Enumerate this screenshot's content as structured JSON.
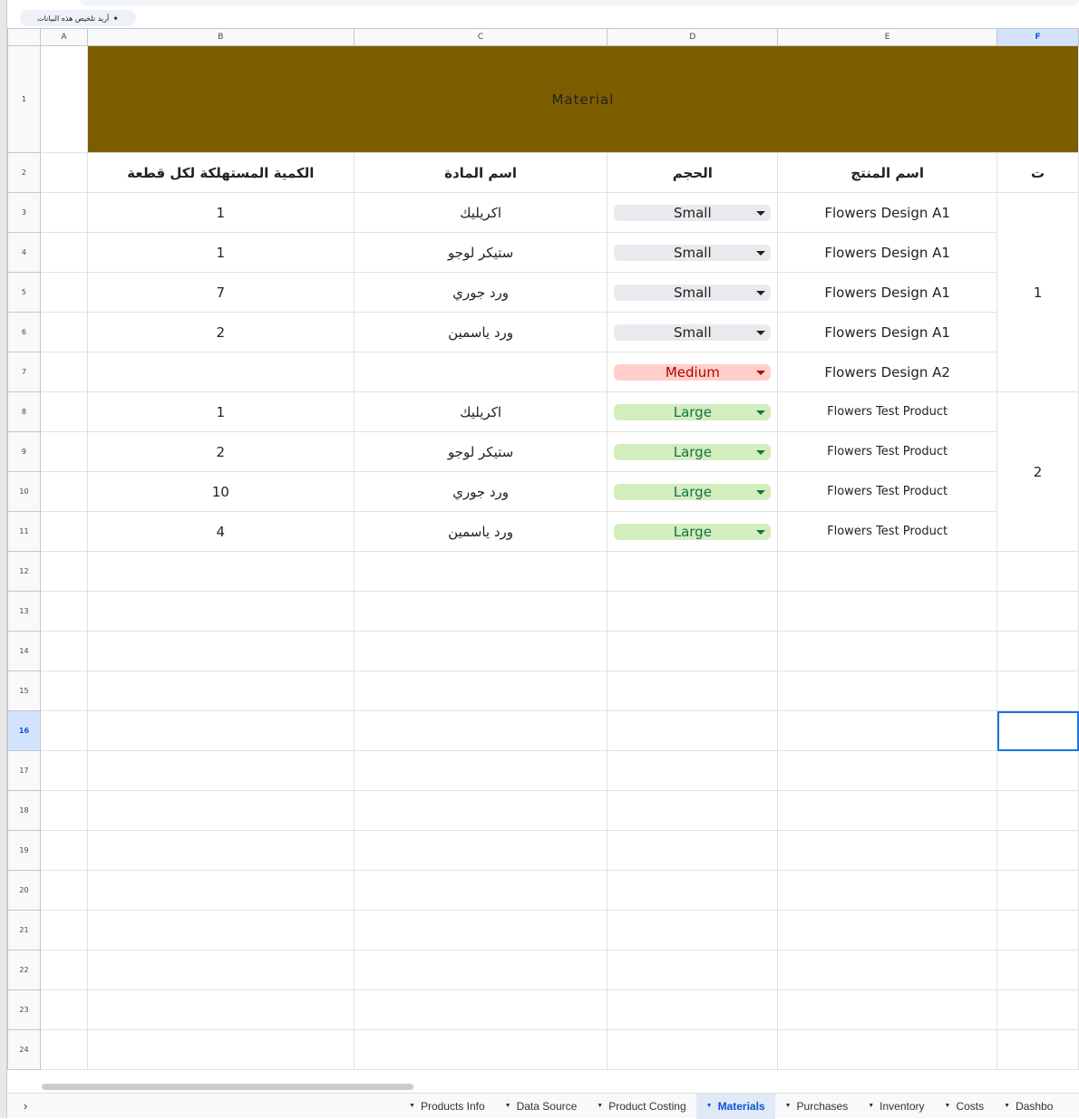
{
  "toolbar": {
    "ai_prompt": "أريد تلخيص هذه البيانات",
    "sparkle_icon": "sparkle-icon"
  },
  "columns": [
    "A",
    "B",
    "C",
    "D",
    "E",
    "F"
  ],
  "selected_column": "F",
  "selected_row": 16,
  "title": "Material",
  "headers": {
    "f": "ت",
    "e": "اسم المنتج",
    "d": "الحجم",
    "c": "اسم المادة",
    "b": "الكمية المستهلكة لكل قطعة"
  },
  "rows": [
    {
      "row": 3,
      "product": "Flowers Design A1",
      "size": "Small",
      "material": "اكريليك",
      "qty": "1"
    },
    {
      "row": 4,
      "product": "Flowers Design A1",
      "size": "Small",
      "material": "ستيكر لوجو",
      "qty": "1"
    },
    {
      "row": 5,
      "product": "Flowers Design A1",
      "size": "Small",
      "material": "ورد جوري",
      "qty": "7"
    },
    {
      "row": 6,
      "product": "Flowers Design A1",
      "size": "Small",
      "material": "ورد ياسمين",
      "qty": "2"
    },
    {
      "row": 7,
      "product": "Flowers Design A2",
      "size": "Medium",
      "material": "",
      "qty": ""
    },
    {
      "row": 8,
      "product": "Flowers Test Product",
      "size": "Large",
      "material": "اكريليك",
      "qty": "1"
    },
    {
      "row": 9,
      "product": "Flowers Test Product",
      "size": "Large",
      "material": "ستيكر لوجو",
      "qty": "2"
    },
    {
      "row": 10,
      "product": "Flowers Test Product",
      "size": "Large",
      "material": "ورد جوري",
      "qty": "10"
    },
    {
      "row": 11,
      "product": "Flowers Test Product",
      "size": "Large",
      "material": "ورد ياسمين",
      "qty": "4"
    }
  ],
  "group_ids": [
    "1",
    "2"
  ],
  "size_colors": {
    "Small": "#e8eaed",
    "Medium": "#ffcfc9",
    "Large": "#d4edbc"
  },
  "title_color": "#7c5e00",
  "sheet_tabs": [
    "Products Info",
    "Data Source",
    "Product Costing",
    "Materials",
    "Purchases",
    "Inventory",
    "Costs",
    "Dashbo"
  ],
  "active_tab": "Materials"
}
